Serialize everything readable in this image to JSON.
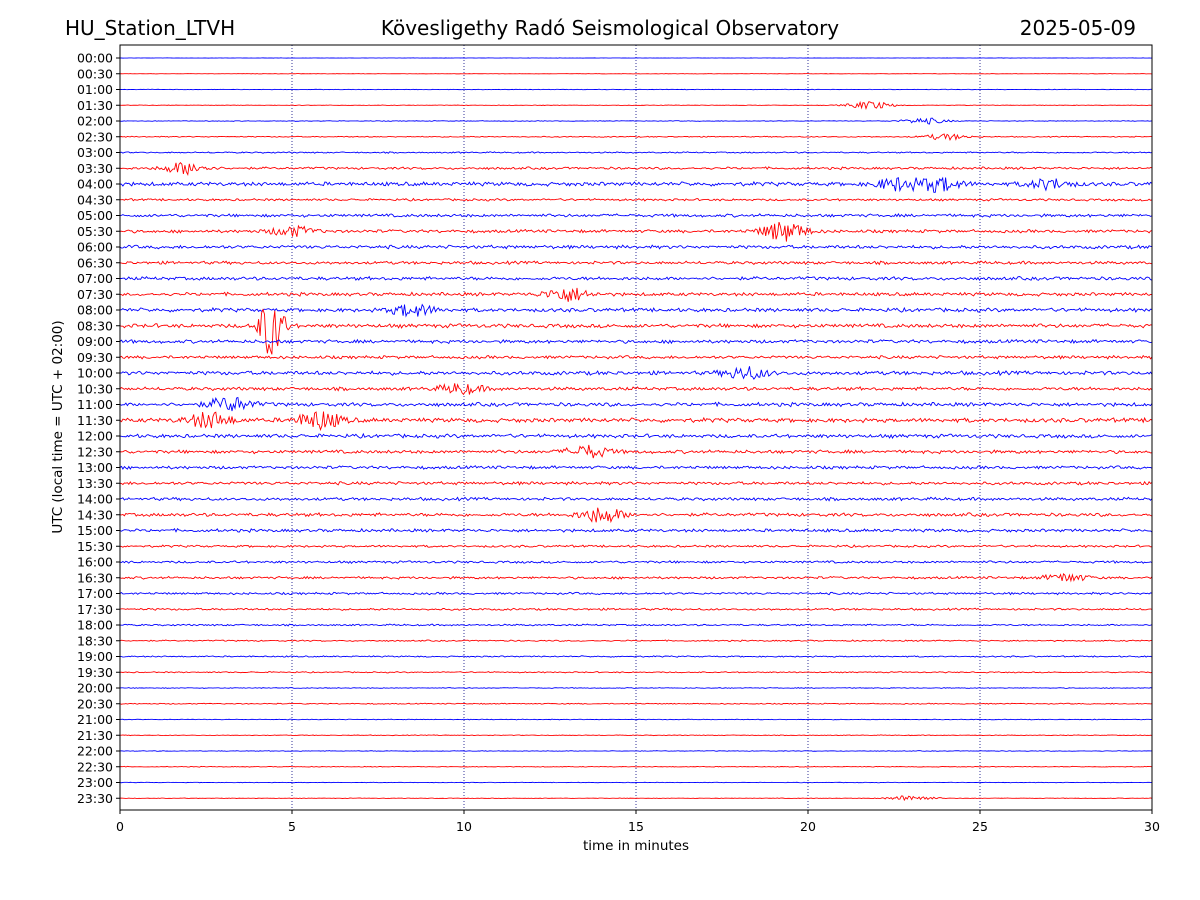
{
  "header": {
    "station": "HU_Station_LTVH",
    "observatory": "Kövesligethy Radó Seismological Observatory",
    "date": "2025-05-09"
  },
  "chart_data": {
    "type": "line",
    "title": "Kövesligethy Radó Seismological Observatory",
    "xlabel": "time in minutes",
    "ylabel": "UTC (local time = UTC + 02:00)",
    "xlim": [
      0,
      30
    ],
    "x_ticks": [
      "0",
      "5",
      "10",
      "15",
      "20",
      "25",
      "30"
    ],
    "vertical_gridlines_at_minutes": [
      5,
      10,
      15,
      20,
      25
    ],
    "trace_colors": [
      "#0000ff",
      "#ff0000"
    ],
    "rows": [
      "00:00",
      "00:30",
      "01:00",
      "01:30",
      "02:00",
      "02:30",
      "03:00",
      "03:30",
      "04:00",
      "04:30",
      "05:00",
      "05:30",
      "06:00",
      "06:30",
      "07:00",
      "07:30",
      "08:00",
      "08:30",
      "09:00",
      "09:30",
      "10:00",
      "10:30",
      "11:00",
      "11:30",
      "12:00",
      "12:30",
      "13:00",
      "13:30",
      "14:00",
      "14:30",
      "15:00",
      "15:30",
      "16:00",
      "16:30",
      "17:00",
      "17:30",
      "18:00",
      "18:30",
      "19:00",
      "19:30",
      "20:00",
      "20:30",
      "21:00",
      "21:30",
      "22:00",
      "22:30",
      "23:00",
      "23:30"
    ],
    "noise_level": [
      0.15,
      0.2,
      0.3,
      0.3,
      0.4,
      0.6,
      0.8,
      1.4,
      2.3,
      1.3,
      1.8,
      1.8,
      2.0,
      1.8,
      2.0,
      2.0,
      2.2,
      2.3,
      2.0,
      1.8,
      2.3,
      2.0,
      2.2,
      2.5,
      2.2,
      2.0,
      1.8,
      1.8,
      1.8,
      2.0,
      1.8,
      1.3,
      1.4,
      1.4,
      1.3,
      1.2,
      1.0,
      0.8,
      0.8,
      0.7,
      0.5,
      0.6,
      0.4,
      0.4,
      0.4,
      0.4,
      0.3,
      0.3
    ],
    "events": [
      {
        "row": "01:30",
        "minute": 21.8,
        "amplitude": 4
      },
      {
        "row": "02:00",
        "minute": 23.4,
        "amplitude": 3
      },
      {
        "row": "02:30",
        "minute": 24.0,
        "amplitude": 3
      },
      {
        "row": "03:30",
        "minute": 1.9,
        "amplitude": 6
      },
      {
        "row": "04:00",
        "minute": 22.6,
        "amplitude": 6
      },
      {
        "row": "04:00",
        "minute": 23.8,
        "amplitude": 7
      },
      {
        "row": "04:00",
        "minute": 27.0,
        "amplitude": 5
      },
      {
        "row": "05:30",
        "minute": 19.3,
        "amplitude": 10
      },
      {
        "row": "05:30",
        "minute": 5.0,
        "amplitude": 5
      },
      {
        "row": "07:30",
        "minute": 13.0,
        "amplitude": 7
      },
      {
        "row": "08:00",
        "minute": 8.5,
        "amplitude": 6
      },
      {
        "row": "08:30",
        "minute": 4.4,
        "amplitude": 30
      },
      {
        "row": "10:00",
        "minute": 18.2,
        "amplitude": 6
      },
      {
        "row": "10:30",
        "minute": 9.9,
        "amplitude": 5
      },
      {
        "row": "11:00",
        "minute": 3.2,
        "amplitude": 7
      },
      {
        "row": "11:30",
        "minute": 2.6,
        "amplitude": 8
      },
      {
        "row": "11:30",
        "minute": 5.8,
        "amplitude": 9
      },
      {
        "row": "12:30",
        "minute": 13.6,
        "amplitude": 6
      },
      {
        "row": "14:30",
        "minute": 14.0,
        "amplitude": 8
      },
      {
        "row": "16:30",
        "minute": 27.5,
        "amplitude": 4
      },
      {
        "row": "23:30",
        "minute": 23.0,
        "amplitude": 3
      }
    ]
  }
}
